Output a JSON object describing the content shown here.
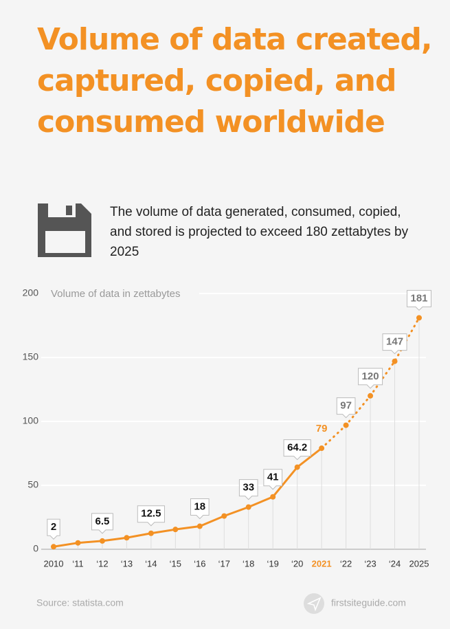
{
  "chart_data": {
    "type": "line",
    "title": "Volume of data created, captured, copied, and consumed worldwide",
    "subtitle": "The volume of data generated, consumed, copied, and stored is projected to exceed 180 zettabytes by 2025",
    "y_label": "Volume of data in zettabytes",
    "categories": [
      "2010",
      "‘11",
      "‘12",
      "‘13",
      "‘14",
      "‘15",
      "‘16",
      "‘17",
      "‘18",
      "‘19",
      "‘20",
      "2021",
      "‘22",
      "‘23",
      "‘24",
      "2025"
    ],
    "series": [
      {
        "name": "Volume of data",
        "color": "#f39124",
        "values": [
          2,
          5,
          6.5,
          9,
          12.5,
          15.5,
          18,
          26,
          33,
          41,
          64.2,
          79,
          97,
          120,
          147,
          181
        ],
        "value_labels": [
          "2",
          null,
          "6.5",
          null,
          "12.5",
          null,
          "18",
          null,
          "33",
          "41",
          "64.2",
          "79",
          "97",
          "120",
          "147",
          "181"
        ]
      }
    ],
    "dotted_from": 11,
    "ylim": [
      0,
      200
    ],
    "yticks": [
      0,
      50,
      100,
      150,
      200
    ],
    "grid": true,
    "source": "Source: statista.com",
    "brand": "firstsiteguide.com"
  }
}
